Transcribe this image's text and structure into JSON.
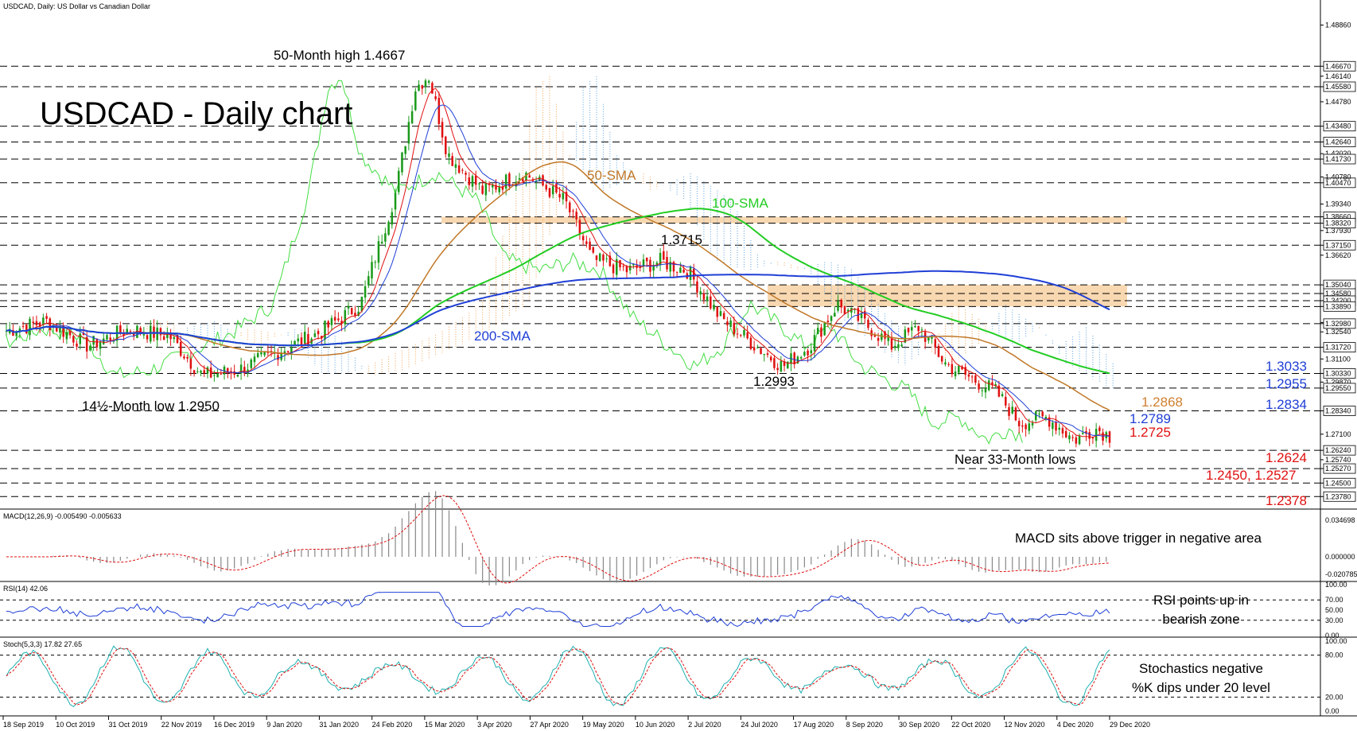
{
  "chart_data": [
    {
      "type": "candlestick",
      "header": "USDCAD, Daily:  US Dollar vs Canadian Dollar",
      "title": "USDCAD - Daily chart",
      "ylim": [
        1.232,
        1.496
      ],
      "x_ticks": [
        "18 Sep 2019",
        "10 Oct 2019",
        "31 Oct 2019",
        "22 Nov 2019",
        "16 Dec 2019",
        "9 Jan 2020",
        "31 Jan 2020",
        "24 Feb 2020",
        "15 Mar 2020",
        "3 Apr 2020",
        "27 Apr 2020",
        "19 May 2020",
        "10 Jun 2020",
        "2 Jul 2020",
        "24 Jul 2020",
        "17 Aug 2020",
        "8 Sep 2020",
        "30 Sep 2020",
        "22 Oct 2020",
        "12 Nov 2020",
        "4 Dec 2020",
        "29 Dec 2020"
      ],
      "price_scale": [
        "1.48860",
        "1.46670",
        "1.46140",
        "1.45580",
        "1.44780",
        "1.43480",
        "1.42640",
        "1.42020",
        "1.41730",
        "1.40470",
        "1.40780",
        "1.39340",
        "1.38660",
        "1.38320",
        "1.37930",
        "1.37150",
        "1.36620",
        "1.35040",
        "1.34580",
        "1.34200",
        "1.33890",
        "1.33040",
        "1.32980",
        "1.32540",
        "1.31720",
        "1.31100",
        "1.30330",
        "1.29870",
        "1.29550",
        "1.28340",
        "1.27100",
        "1.26240",
        "1.25740",
        "1.25270",
        "1.24500",
        "1.23780"
      ],
      "horizontal_levels": [
        "1.46670",
        "1.45580",
        "1.43480",
        "1.42640",
        "1.41730",
        "1.40470",
        "1.38660",
        "1.38320",
        "1.37150",
        "1.35040",
        "1.34580",
        "1.34200",
        "1.33890",
        "1.32980",
        "1.31720",
        "1.30330",
        "1.29550",
        "1.28340",
        "1.26240",
        "1.25270",
        "1.24500",
        "1.23780"
      ],
      "resistance_zones": [
        [
          1.3832,
          1.3866
        ],
        [
          1.3389,
          1.3504
        ]
      ],
      "indicator_names": [
        "50-SMA",
        "100-SMA",
        "200-SMA"
      ],
      "annotations": {
        "high": "50-Month high 1.4667",
        "low": "14½-Month low 1.2950",
        "near_lows": "Near 33-Month lows",
        "p1": "1.3715",
        "p2": "1.2993"
      },
      "right_labels": [
        {
          "text": "1.3033",
          "color": "#1f3fd6"
        },
        {
          "text": "1.2955",
          "color": "#1f3fd6"
        },
        {
          "text": "1.2834",
          "color": "#1f3fd6"
        },
        {
          "text": "1.2789",
          "color": "#1f3fd6"
        },
        {
          "text": "1.2725",
          "color": "#e01010"
        },
        {
          "text": "1.2624",
          "color": "#e01010"
        },
        {
          "text": "1.2450, 1.2527",
          "color": "#e01010"
        },
        {
          "text": "1.2378",
          "color": "#e01010"
        },
        {
          "text": "1.2868",
          "color": "#d08030"
        }
      ],
      "colors": {
        "up": "#1a9a1a",
        "down": "#e01010",
        "sma50": "#c07828",
        "sma100": "#22cc22",
        "sma200": "#1f3fd6",
        "cloud_blue": "#5aa0e0",
        "cloud_orange": "#f0a050",
        "chikou": "#44dd44",
        "zone": "#f5c890"
      }
    },
    {
      "type": "histogram",
      "header": "MACD(12,26,9) -0.005490 -0.005633",
      "note": "MACD sits above trigger in negative area",
      "scale": [
        "0.034698",
        "0.000000",
        "-0.020785"
      ]
    },
    {
      "type": "line",
      "header": "RSI(14) 42.06",
      "note_lines": [
        "RSI points up in",
        "bearish zone"
      ],
      "scale": [
        "100.00",
        "70.00",
        "50.00",
        "30.00",
        "0.00"
      ],
      "ylim": [
        0,
        100
      ]
    },
    {
      "type": "line",
      "header": "Stoch(5,3,3) 17.82 27.65",
      "note_lines": [
        "Stochastics negative",
        "%K dips under 20 level"
      ],
      "scale": [
        "100.00",
        "80.00",
        "20.00",
        "0.00"
      ],
      "ylim": [
        0,
        100
      ]
    }
  ]
}
